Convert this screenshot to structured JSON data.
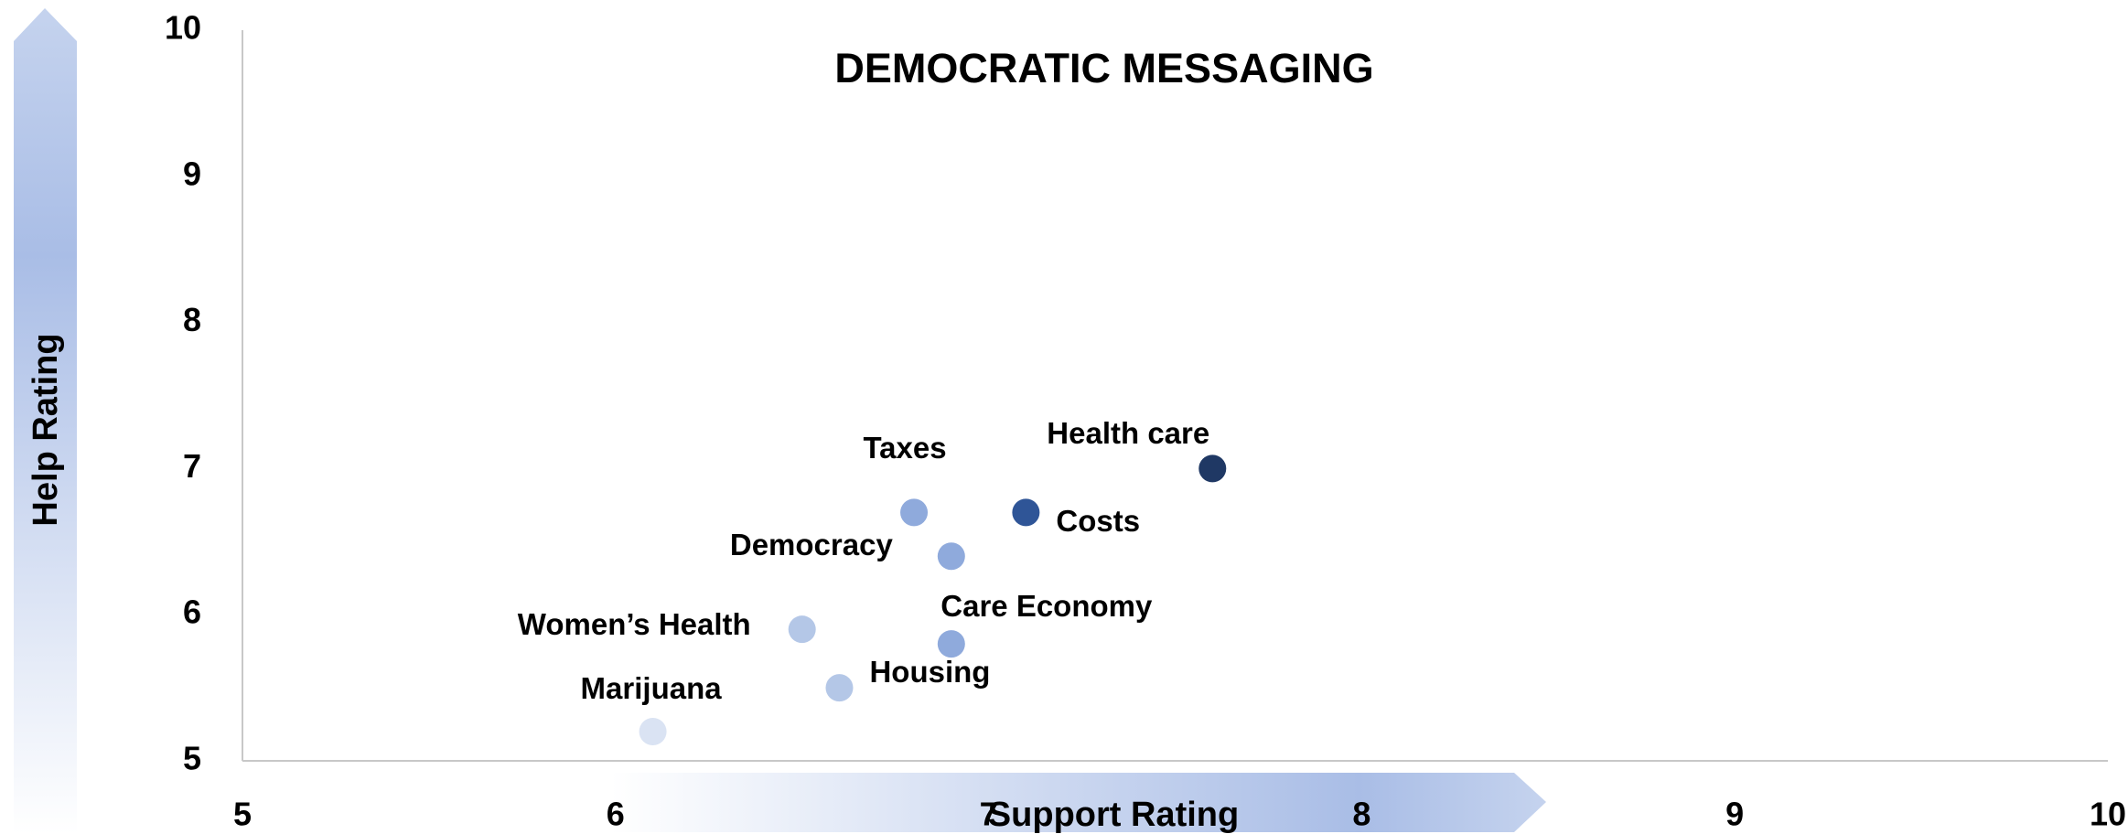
{
  "chart_data": {
    "type": "scatter",
    "title": "DEMOCRATIC MESSAGING",
    "x_label": "Support Rating",
    "y_label": "Help Rating",
    "labels": [
      "Health care",
      "Costs",
      "Taxes",
      "Democracy",
      "Care Economy",
      "Women’s Health",
      "Housing",
      "Marijuana"
    ],
    "x": [
      7.6,
      7.1,
      6.8,
      6.9,
      6.9,
      6.5,
      6.6,
      6.1
    ],
    "values": [
      7.0,
      6.7,
      6.7,
      6.4,
      5.8,
      5.9,
      5.5,
      5.2
    ],
    "colors": [
      "#1f3864",
      "#2f5597",
      "#8faadc",
      "#8faadc",
      "#8faadc",
      "#b4c7e7",
      "#b4c7e7",
      "#dae3f3"
    ],
    "xlim": [
      5,
      10
    ],
    "ylim": [
      5,
      10
    ],
    "xticks": [
      5,
      6,
      7,
      8,
      9,
      10
    ],
    "yticks": [
      5,
      6,
      7,
      8,
      9,
      10
    ],
    "grid": false
  }
}
